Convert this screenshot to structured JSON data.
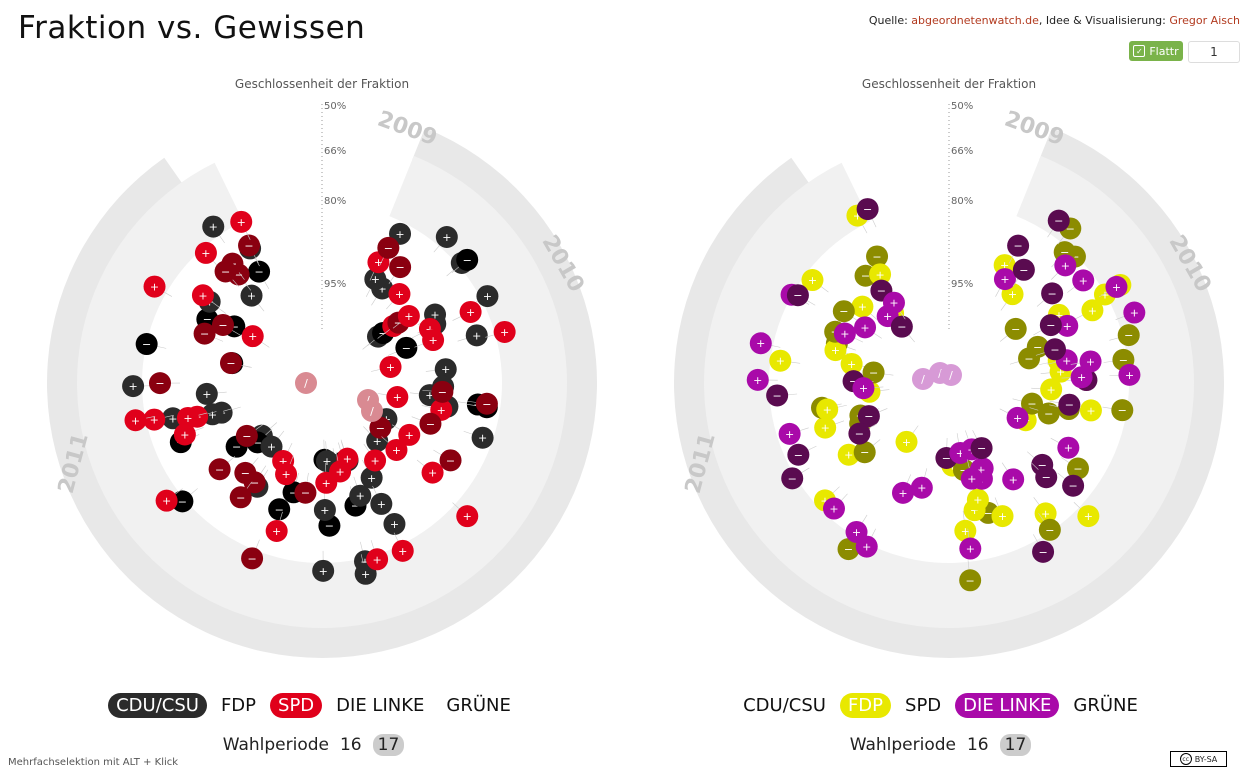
{
  "title": "Fraktion vs. Gewissen",
  "credits": {
    "prefix": "Quelle: ",
    "source": "abgeordnetenwatch.de",
    "middle": ", Idee & Visualisierung: ",
    "author": "Gregor Aisch"
  },
  "flattr": {
    "label": "Flattr",
    "count": "1"
  },
  "hint": "Mehrfachselektion mit ALT + Klick",
  "license": "BY-SA",
  "colors": {
    "CDU": "#2b2b2b",
    "CDU_dark": "#000000",
    "SPD": "#e0001b",
    "SPD_dark": "#8a0010",
    "FDP": "#e8e800",
    "FDP_dark": "#8c8c00",
    "LINKE": "#a90aa9",
    "LINKE_dark": "#5a0b50",
    "neutral_cdu_spd": "#d98a92",
    "neutral_fdp_linke": "#d79ad6",
    "ring": "#e8e8e8"
  },
  "charts": [
    {
      "axis_title": "Geschlossenheit der Fraktion",
      "ticks": [
        "50%",
        "66%",
        "80%",
        "95%"
      ],
      "years": [
        "2009",
        "2010",
        "2011"
      ],
      "parties": [
        "CDU/CSU",
        "FDP",
        "SPD",
        "DIE LINKE",
        "GRÜNE"
      ],
      "selected": [
        "CDU/CSU",
        "SPD"
      ],
      "period_label": "Wahlperiode",
      "periods": [
        "16",
        "17"
      ],
      "active_period": "17"
    },
    {
      "axis_title": "Geschlossenheit der Fraktion",
      "ticks": [
        "50%",
        "66%",
        "80%",
        "95%"
      ],
      "years": [
        "2009",
        "2010",
        "2011"
      ],
      "parties": [
        "CDU/CSU",
        "FDP",
        "SPD",
        "DIE LINKE",
        "GRÜNE"
      ],
      "selected": [
        "FDP",
        "DIE LINKE"
      ],
      "period_label": "Wahlperiode",
      "periods": [
        "16",
        "17"
      ],
      "active_period": "17"
    }
  ],
  "chart_data": [
    {
      "type": "scatter",
      "title": "",
      "xlabel": "",
      "ylabel": "Geschlossenheit der Fraktion",
      "radial_scale": [
        50,
        66,
        80,
        95
      ],
      "series": [
        {
          "name": "CDU/CSU",
          "points": 60
        },
        {
          "name": "SPD",
          "points": 58
        }
      ]
    },
    {
      "type": "scatter",
      "title": "",
      "xlabel": "",
      "ylabel": "Geschlossenheit der Fraktion",
      "radial_scale": [
        50,
        66,
        80,
        95
      ],
      "series": [
        {
          "name": "FDP",
          "points": 60
        },
        {
          "name": "DIE LINKE",
          "points": 58
        }
      ]
    }
  ]
}
